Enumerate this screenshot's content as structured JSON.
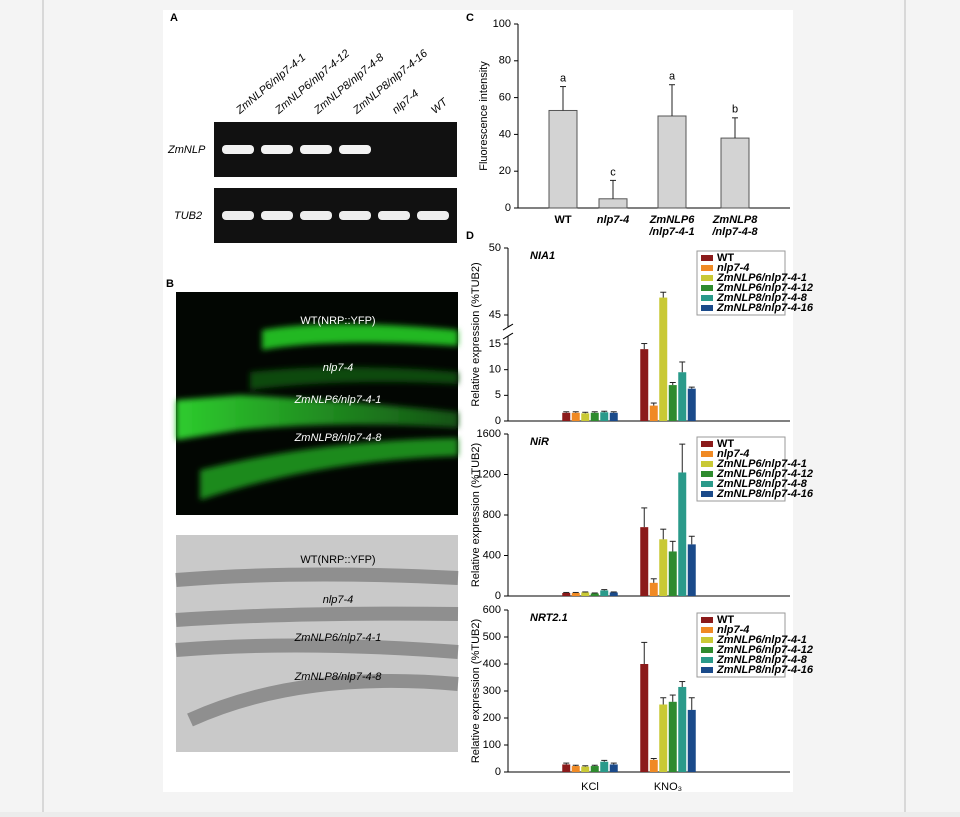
{
  "panel_a": {
    "label": "A",
    "lanes": [
      "ZmNLP6/nlp7-4-1",
      "ZmNLP6/nlp7-4-12",
      "ZmNLP8/nlp7-4-8",
      "ZmNLP8/nlp7-4-16",
      "nlp7-4",
      "WT"
    ],
    "rows": [
      "ZmNLP",
      "TUB2"
    ]
  },
  "panel_b": {
    "label": "B",
    "fluorescence_labels": [
      "WT(NRP::YFP)",
      "nlp7-4",
      "ZmNLP6/nlp7-4-1",
      "ZmNLP8/nlp7-4-8"
    ],
    "brightfield_labels": [
      "WT(NRP::YFP)",
      "nlp7-4",
      "ZmNLP6/nlp7-4-1",
      "ZmNLP8/nlp7-4-8"
    ]
  },
  "chart_data": [
    {
      "type": "bar",
      "panel": "C",
      "ylabel": "Fluorescence intensity",
      "categories": [
        "WT",
        "nlp7-4",
        "ZmNLP6\n/nlp7-4-1",
        "ZmNLP8\n/nlp7-4-8"
      ],
      "values": [
        53,
        5,
        50,
        38
      ],
      "errors": [
        13,
        10,
        17,
        11
      ],
      "annotations": [
        "a",
        "c",
        "a",
        "b"
      ],
      "color": "#d3d3d3",
      "ylim": [
        0,
        100
      ],
      "yticks": [
        0,
        20,
        40,
        60,
        80,
        100
      ]
    },
    {
      "type": "grouped-bar",
      "panel": "D",
      "title": "NIA1",
      "ylabel": "Relative expression (%TUB2)",
      "categories": [
        null,
        null
      ],
      "ylim": [
        0,
        50
      ],
      "axis_break": [
        15,
        45
      ],
      "yticks": [
        0,
        5,
        10,
        15,
        45,
        50
      ],
      "series": [
        {
          "name": "WT",
          "color": "#8b1a1a",
          "values": [
            1.6,
            14
          ],
          "errors": [
            0.2,
            1.5
          ]
        },
        {
          "name": "nlp7-4",
          "color": "#f08a24",
          "values": [
            1.6,
            3
          ],
          "errors": [
            0.2,
            0.5
          ]
        },
        {
          "name": "ZmNLP6/nlp7-4-1",
          "color": "#c9c935",
          "values": [
            1.5,
            46.3
          ],
          "errors": [
            0.2,
            0.4
          ]
        },
        {
          "name": "ZmNLP6/nlp7-4-12",
          "color": "#2e8b2e",
          "values": [
            1.6,
            7
          ],
          "errors": [
            0.2,
            0.5
          ]
        },
        {
          "name": "ZmNLP8/nlp7-4-8",
          "color": "#2a9a8a",
          "values": [
            1.7,
            9.5
          ],
          "errors": [
            0.2,
            2
          ]
        },
        {
          "name": "ZmNLP8/nlp7-4-16",
          "color": "#1a4a8a",
          "values": [
            1.6,
            6.3
          ],
          "errors": [
            0.2,
            0.3
          ]
        }
      ]
    },
    {
      "type": "grouped-bar",
      "title": "NiR",
      "ylabel": "Relative expression (%TUB2)",
      "categories": [
        null,
        null
      ],
      "ylim": [
        0,
        1600
      ],
      "yticks": [
        0,
        400,
        800,
        1200,
        1600
      ],
      "series": [
        {
          "name": "WT",
          "color": "#8b1a1a",
          "values": [
            30,
            680
          ],
          "errors": [
            5,
            190
          ]
        },
        {
          "name": "nlp7-4",
          "color": "#f08a24",
          "values": [
            30,
            130
          ],
          "errors": [
            5,
            40
          ]
        },
        {
          "name": "ZmNLP6/nlp7-4-1",
          "color": "#c9c935",
          "values": [
            35,
            560
          ],
          "errors": [
            5,
            100
          ]
        },
        {
          "name": "ZmNLP6/nlp7-4-12",
          "color": "#2e8b2e",
          "values": [
            25,
            440
          ],
          "errors": [
            5,
            100
          ]
        },
        {
          "name": "ZmNLP8/nlp7-4-8",
          "color": "#2a9a8a",
          "values": [
            55,
            1220
          ],
          "errors": [
            8,
            280
          ]
        },
        {
          "name": "ZmNLP8/nlp7-4-16",
          "color": "#1a4a8a",
          "values": [
            35,
            510
          ],
          "errors": [
            5,
            80
          ]
        }
      ]
    },
    {
      "type": "grouped-bar",
      "title": "NRT2.1",
      "ylabel": "Relative expression (%TUB2)",
      "categories": [
        "KCl",
        "KNO₃"
      ],
      "ylim": [
        0,
        600
      ],
      "yticks": [
        0,
        100,
        200,
        300,
        400,
        500,
        600
      ],
      "series": [
        {
          "name": "WT",
          "color": "#8b1a1a",
          "values": [
            28,
            400
          ],
          "errors": [
            5,
            80
          ]
        },
        {
          "name": "nlp7-4",
          "color": "#f08a24",
          "values": [
            22,
            45
          ],
          "errors": [
            3,
            5
          ]
        },
        {
          "name": "ZmNLP6/nlp7-4-1",
          "color": "#c9c935",
          "values": [
            20,
            250
          ],
          "errors": [
            3,
            25
          ]
        },
        {
          "name": "ZmNLP6/nlp7-4-12",
          "color": "#2e8b2e",
          "values": [
            22,
            260
          ],
          "errors": [
            3,
            25
          ]
        },
        {
          "name": "ZmNLP8/nlp7-4-8",
          "color": "#2a9a8a",
          "values": [
            38,
            315
          ],
          "errors": [
            5,
            20
          ]
        },
        {
          "name": "ZmNLP8/nlp7-4-16",
          "color": "#1a4a8a",
          "values": [
            28,
            230
          ],
          "errors": [
            5,
            45
          ]
        }
      ]
    }
  ]
}
